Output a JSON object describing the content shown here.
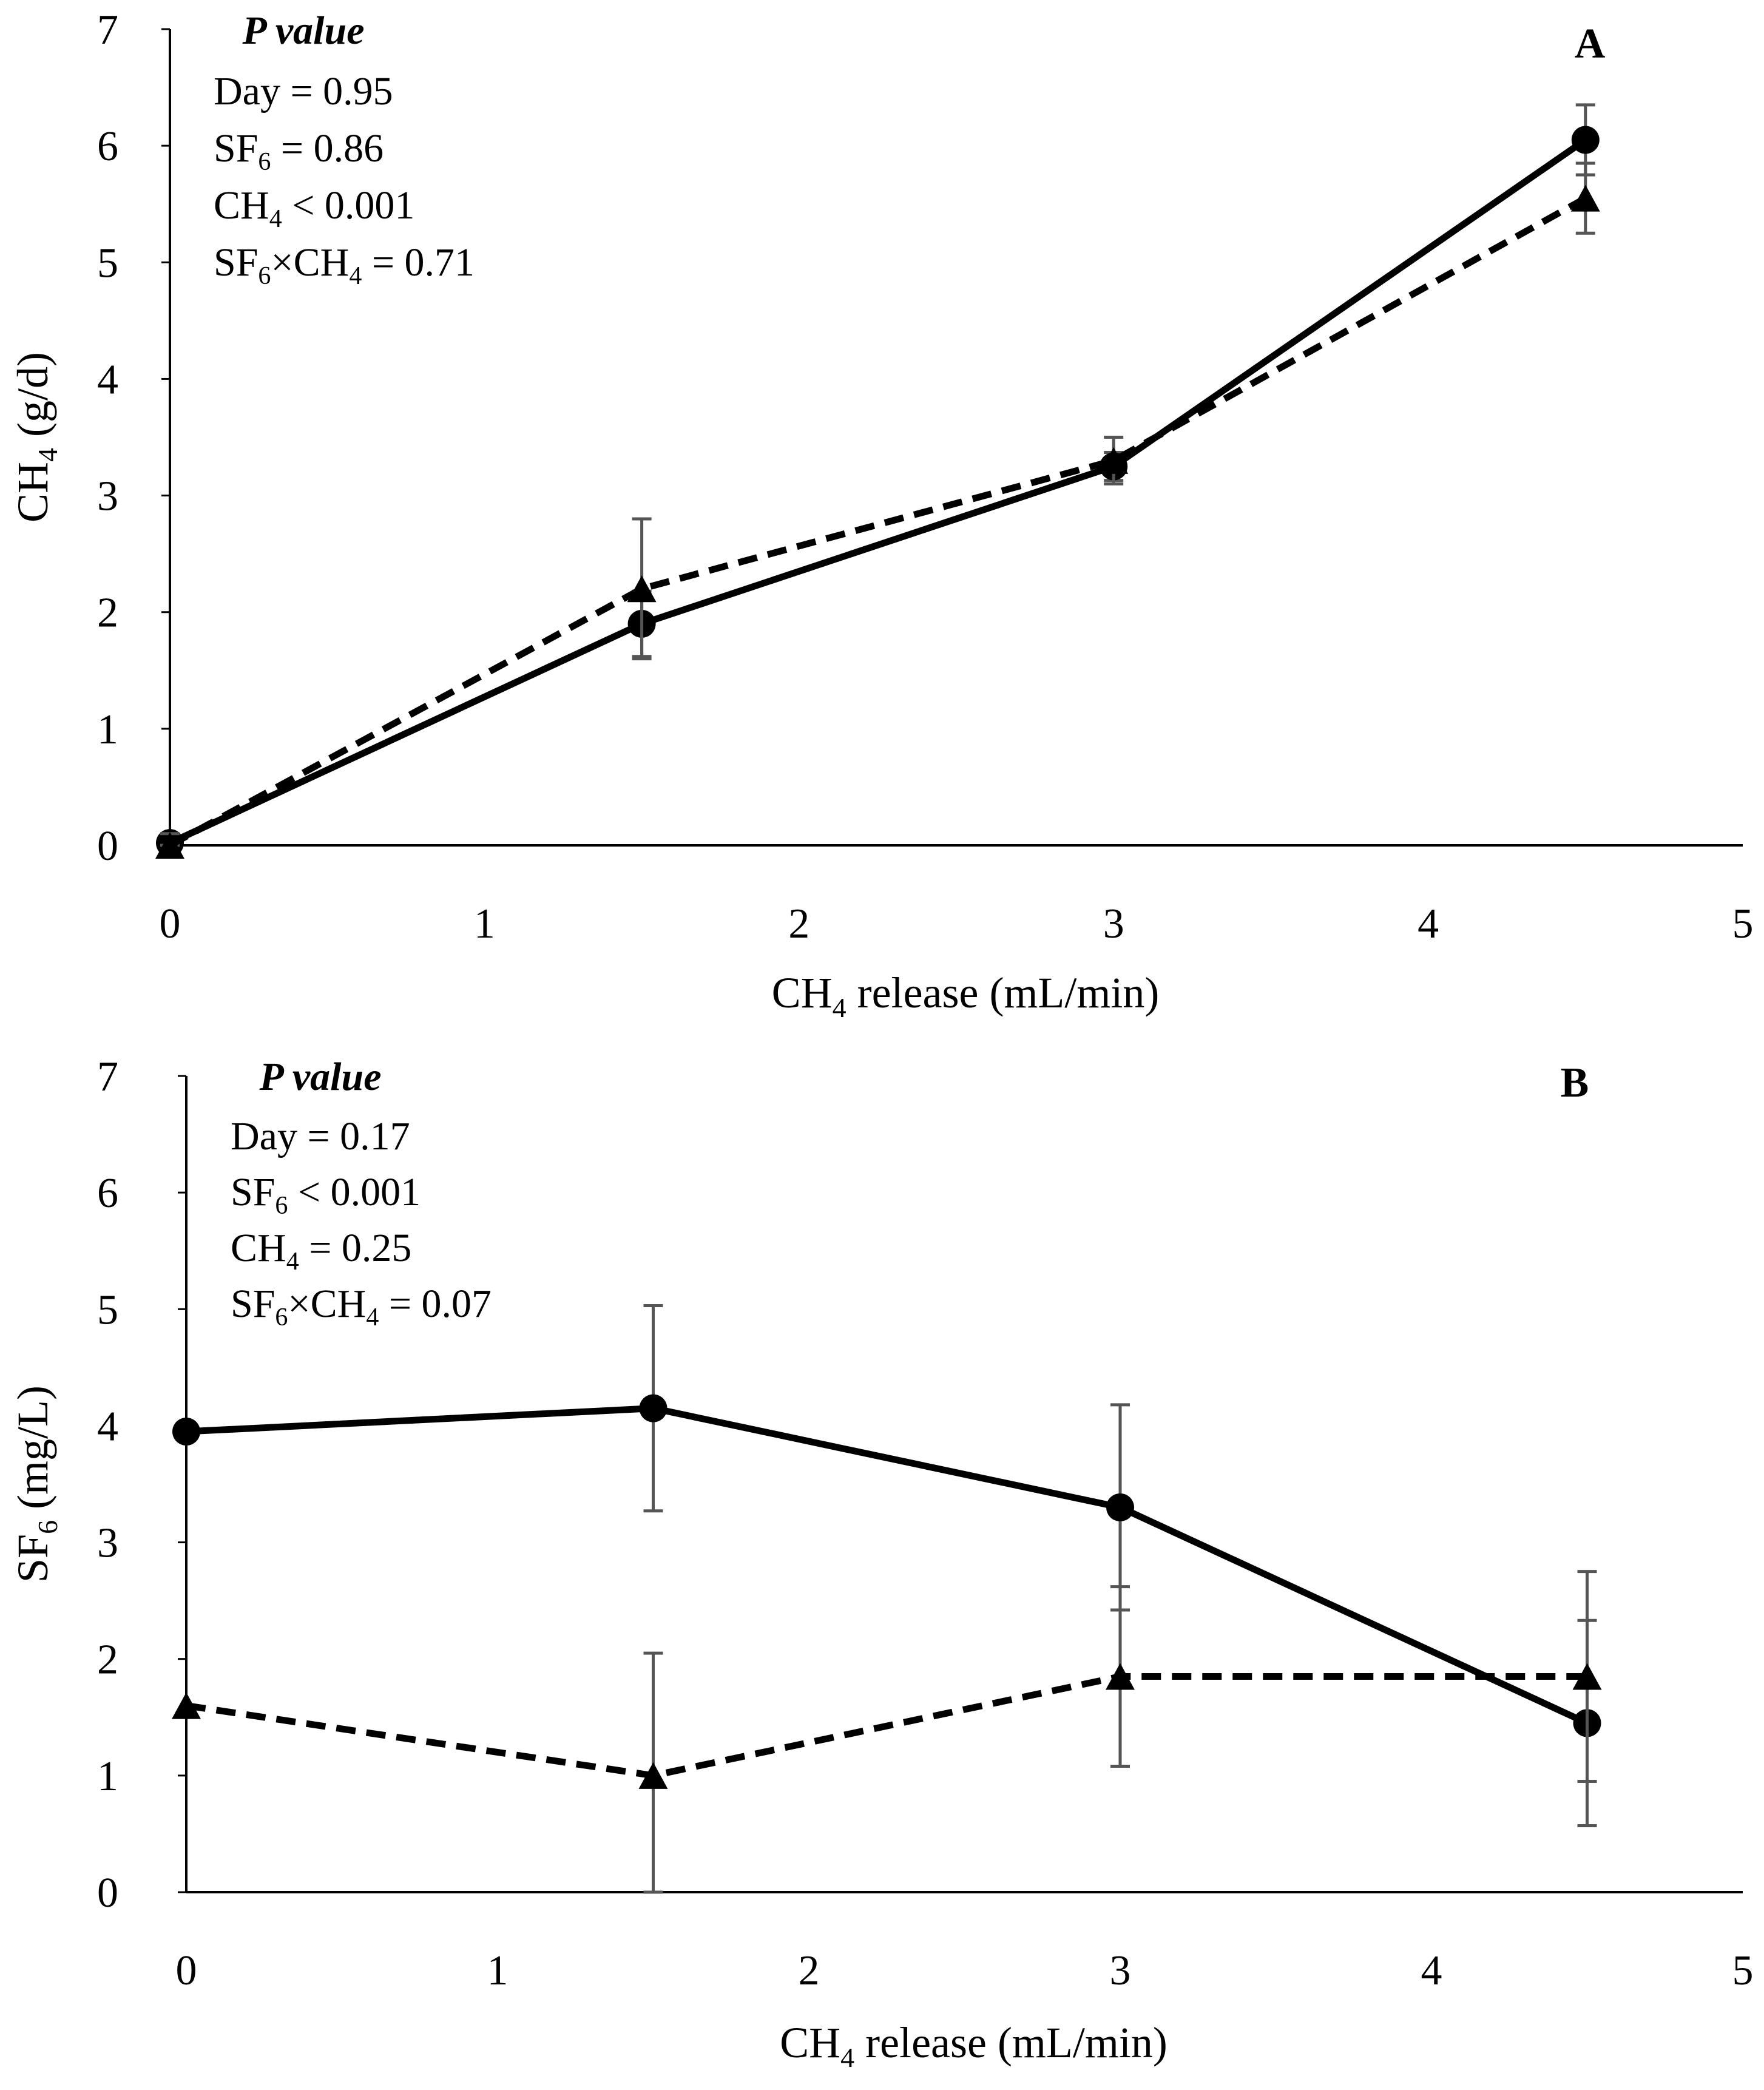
{
  "chart_data": [
    {
      "type": "line",
      "panel": "A",
      "xlabel": {
        "main": "CH",
        "sub": "4",
        "rest": " release (mL/min)"
      },
      "ylabel": {
        "main": "CH",
        "sub": "4",
        "rest": " (g/d)"
      },
      "xlim": [
        0,
        5
      ],
      "ylim": [
        0,
        7
      ],
      "xticks": [
        "0",
        "1",
        "2",
        "3",
        "4",
        "5"
      ],
      "yticks": [
        "0",
        "1",
        "2",
        "3",
        "4",
        "5",
        "6",
        "7"
      ],
      "grid": false,
      "legend": "none",
      "annotation": {
        "title": "P value",
        "lines": [
          {
            "pre": "Day = 0.95",
            "sub": "",
            "post": "",
            "sub2": "",
            "post2": ""
          },
          {
            "pre": "SF",
            "sub": "6",
            "post": " = 0.86",
            "sub2": "",
            "post2": ""
          },
          {
            "pre": "CH",
            "sub": "4",
            "post": " < 0.001",
            "sub2": "",
            "post2": ""
          },
          {
            "pre": "SF",
            "sub": "6",
            "post": "×CH",
            "sub2": "4",
            "post2": " = 0.71"
          }
        ]
      },
      "series": [
        {
          "marker": "circle",
          "line": "solid",
          "x": [
            0,
            1.5,
            3,
            4.5
          ],
          "y": [
            0.02,
            1.9,
            3.25,
            6.05
          ],
          "err": [
            0.05,
            0.28,
            0.12,
            0.3
          ]
        },
        {
          "marker": "triangle",
          "line": "dashed",
          "x": [
            0,
            1.5,
            3,
            4.5
          ],
          "y": [
            0.0,
            2.2,
            3.3,
            5.55
          ],
          "err": [
            0.1,
            0.6,
            0.2,
            0.3
          ]
        }
      ]
    },
    {
      "type": "line",
      "panel": "B",
      "xlabel": {
        "main": "CH",
        "sub": "4",
        "rest": " release (mL/min)"
      },
      "ylabel": {
        "main": "SF",
        "sub": "6",
        "rest": " (mg/L)"
      },
      "xlim": [
        0,
        5
      ],
      "ylim": [
        0,
        7
      ],
      "xticks": [
        "0",
        "1",
        "2",
        "3",
        "4",
        "5"
      ],
      "yticks": [
        "0",
        "1",
        "2",
        "3",
        "4",
        "5",
        "6",
        "7"
      ],
      "grid": false,
      "legend": "none",
      "annotation": {
        "title": "P value",
        "lines": [
          {
            "pre": "Day = 0.17",
            "sub": "",
            "post": "",
            "sub2": "",
            "post2": ""
          },
          {
            "pre": "SF",
            "sub": "6",
            "post": " < 0.001",
            "sub2": "",
            "post2": ""
          },
          {
            "pre": "CH",
            "sub": "4",
            "post": " = 0.25",
            "sub2": "",
            "post2": ""
          },
          {
            "pre": "SF",
            "sub": "6",
            "post": "×CH",
            "sub2": "4",
            "post2": " = 0.07"
          }
        ]
      },
      "series": [
        {
          "marker": "circle",
          "line": "solid",
          "x": [
            0,
            1.5,
            3,
            4.5
          ],
          "y": [
            3.95,
            4.15,
            3.3,
            1.45
          ],
          "err": [
            0.0,
            0.88,
            0.88,
            0.88
          ]
        },
        {
          "marker": "triangle",
          "line": "dashed",
          "x": [
            0,
            1.5,
            3,
            4.5
          ],
          "y": [
            1.6,
            1.0,
            1.85,
            1.85
          ],
          "err": [
            0.0,
            1.05,
            0.77,
            0.9
          ]
        }
      ]
    }
  ]
}
